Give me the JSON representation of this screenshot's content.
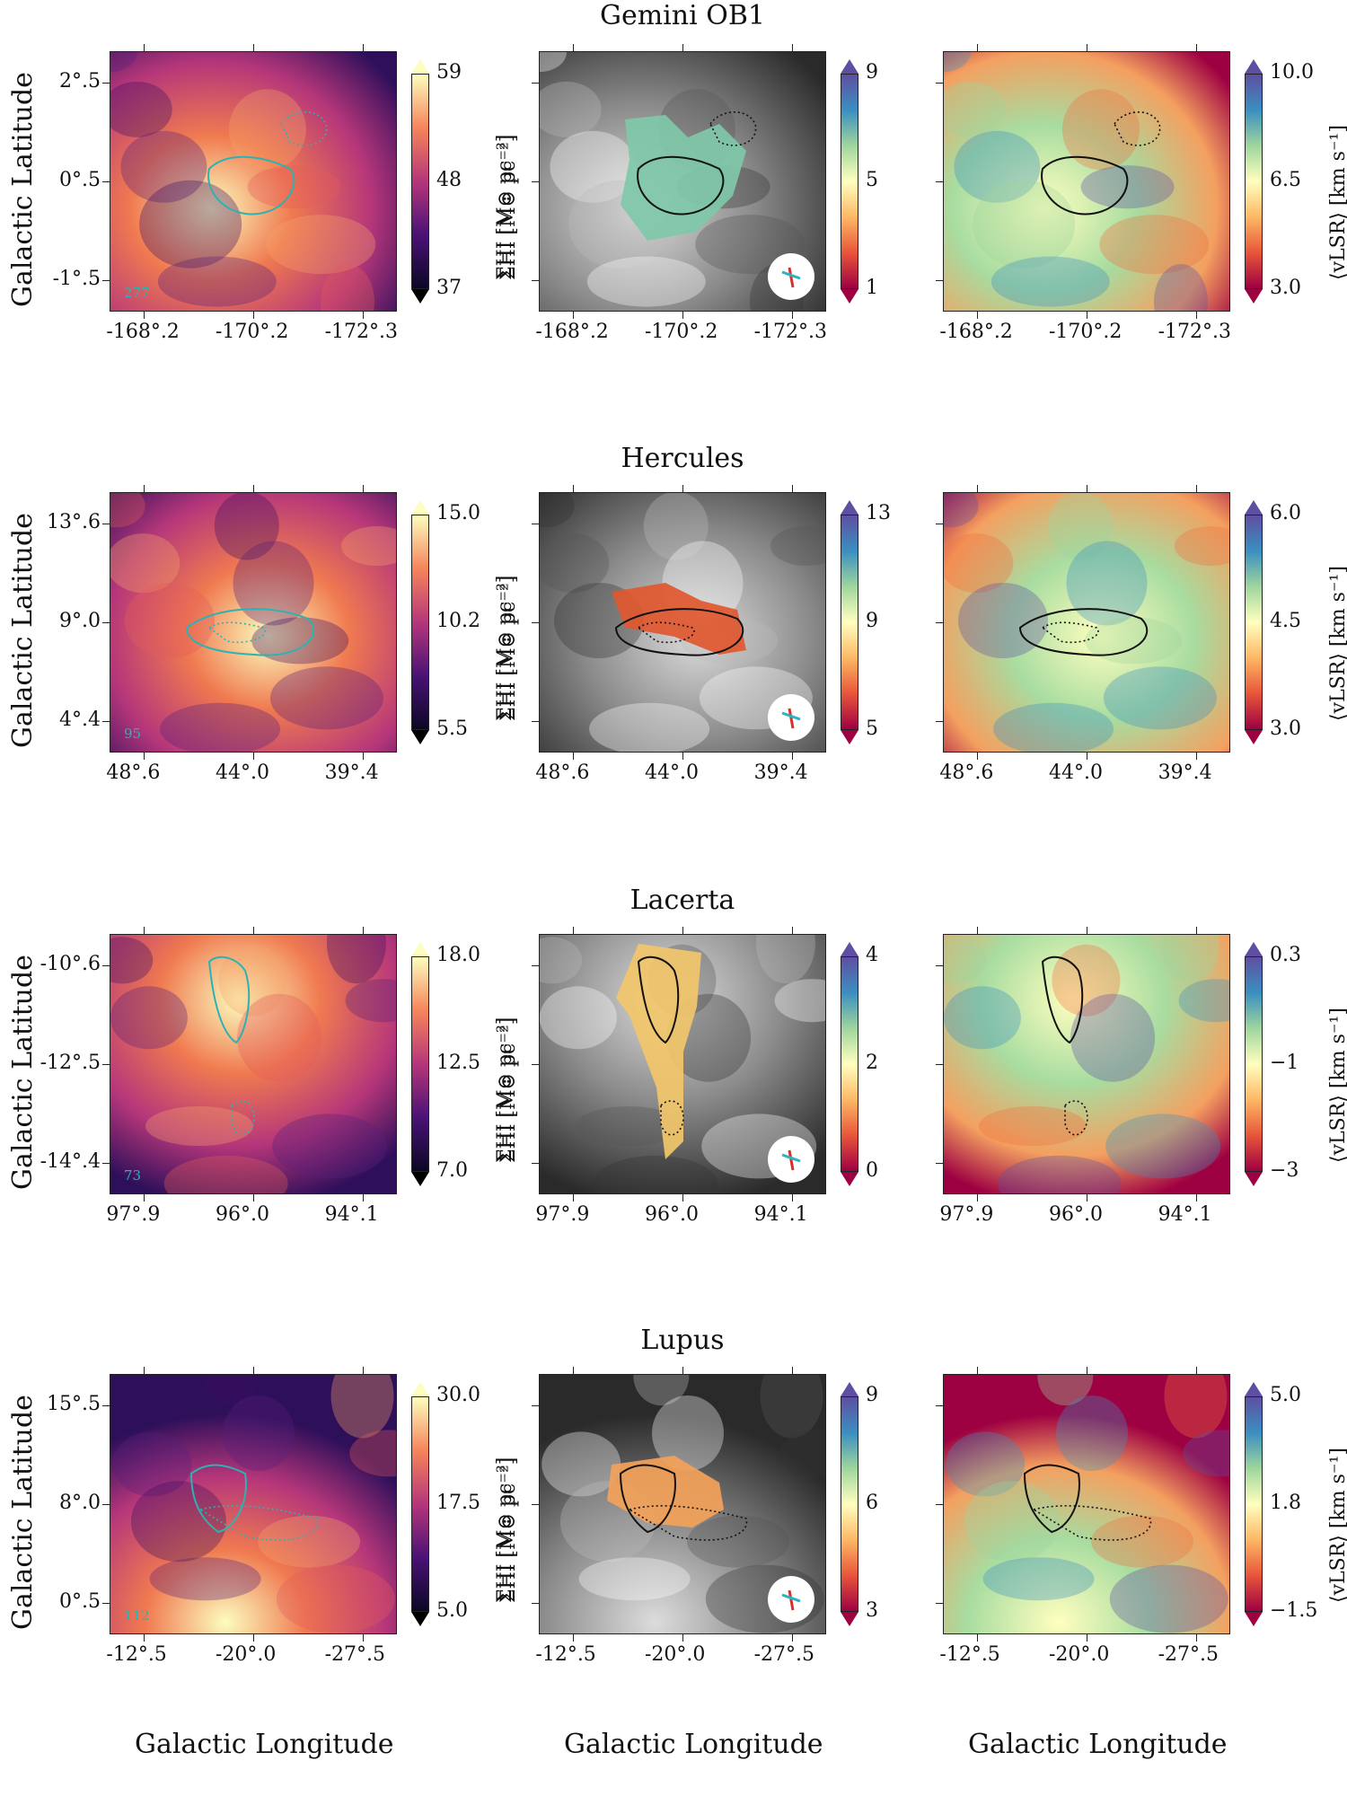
{
  "figure": {
    "rows": [
      {
        "title": "Gemini OB1",
        "id_label": "277",
        "y_ticks": [
          "2°.5",
          "0°.5",
          "-1°.5"
        ],
        "x_ticks": [
          "-168°.2",
          "-170°.2",
          "-172°.3"
        ],
        "col1_colorbar": {
          "max": "59",
          "mid": "48",
          "min": "37"
        },
        "col2_colorbar": {
          "max": "9",
          "mid": "5",
          "min": "1"
        },
        "col3_colorbar": {
          "max": "10.0",
          "mid": "6.5",
          "min": "3.0"
        }
      },
      {
        "title": "Hercules",
        "id_label": "95",
        "y_ticks": [
          "13°.6",
          "9°.0",
          "4°.4"
        ],
        "x_ticks": [
          "48°.6",
          "44°.0",
          "39°.4"
        ],
        "col1_colorbar": {
          "max": "15.0",
          "mid": "10.2",
          "min": "5.5"
        },
        "col2_colorbar": {
          "max": "13",
          "mid": "9",
          "min": "5"
        },
        "col3_colorbar": {
          "max": "6.0",
          "mid": "4.5",
          "min": "3.0"
        }
      },
      {
        "title": "Lacerta",
        "id_label": "73",
        "y_ticks": [
          "-10°.6",
          "-12°.5",
          "-14°.4"
        ],
        "x_ticks": [
          "97°.9",
          "96°.0",
          "94°.1"
        ],
        "col1_colorbar": {
          "max": "18.0",
          "mid": "12.5",
          "min": "7.0"
        },
        "col2_colorbar": {
          "max": "4",
          "mid": "2",
          "min": "0"
        },
        "col3_colorbar": {
          "max": "0.3",
          "mid": "−1",
          "min": "−3"
        }
      },
      {
        "title": "Lupus",
        "id_label": "112",
        "y_ticks": [
          "15°.5",
          "8°.0",
          "0°.5"
        ],
        "x_ticks": [
          "-12°.5",
          "-20°.0",
          "-27°.5"
        ],
        "col1_colorbar": {
          "max": "30.0",
          "mid": "17.5",
          "min": "5.0"
        },
        "col2_colorbar": {
          "max": "9",
          "mid": "6",
          "min": "3"
        },
        "col3_colorbar": {
          "max": "5.0",
          "mid": "1.8",
          "min": "−1.5"
        }
      }
    ],
    "labels": {
      "y_axis": "Galactic Latitude",
      "x_axis": "Galactic Longitude",
      "col1_unit": "ΣHI [M⊙ pc⁻²]",
      "col2_unit": "ΣHI [M⊙ pc⁻²]",
      "col3_unit": "⟨vLSR⟩ [km s⁻¹]"
    },
    "colors": {
      "magma_low": "#0b0724",
      "magma_mid": "#b5367a",
      "magma_high": "#fcfdbf",
      "spectral_low": "#9e0142",
      "spectral_mid": "#ffffbf",
      "spectral_high": "#5e4fa2",
      "contour_cyan": "#2bb3b3",
      "contour_black": "#111111"
    }
  }
}
